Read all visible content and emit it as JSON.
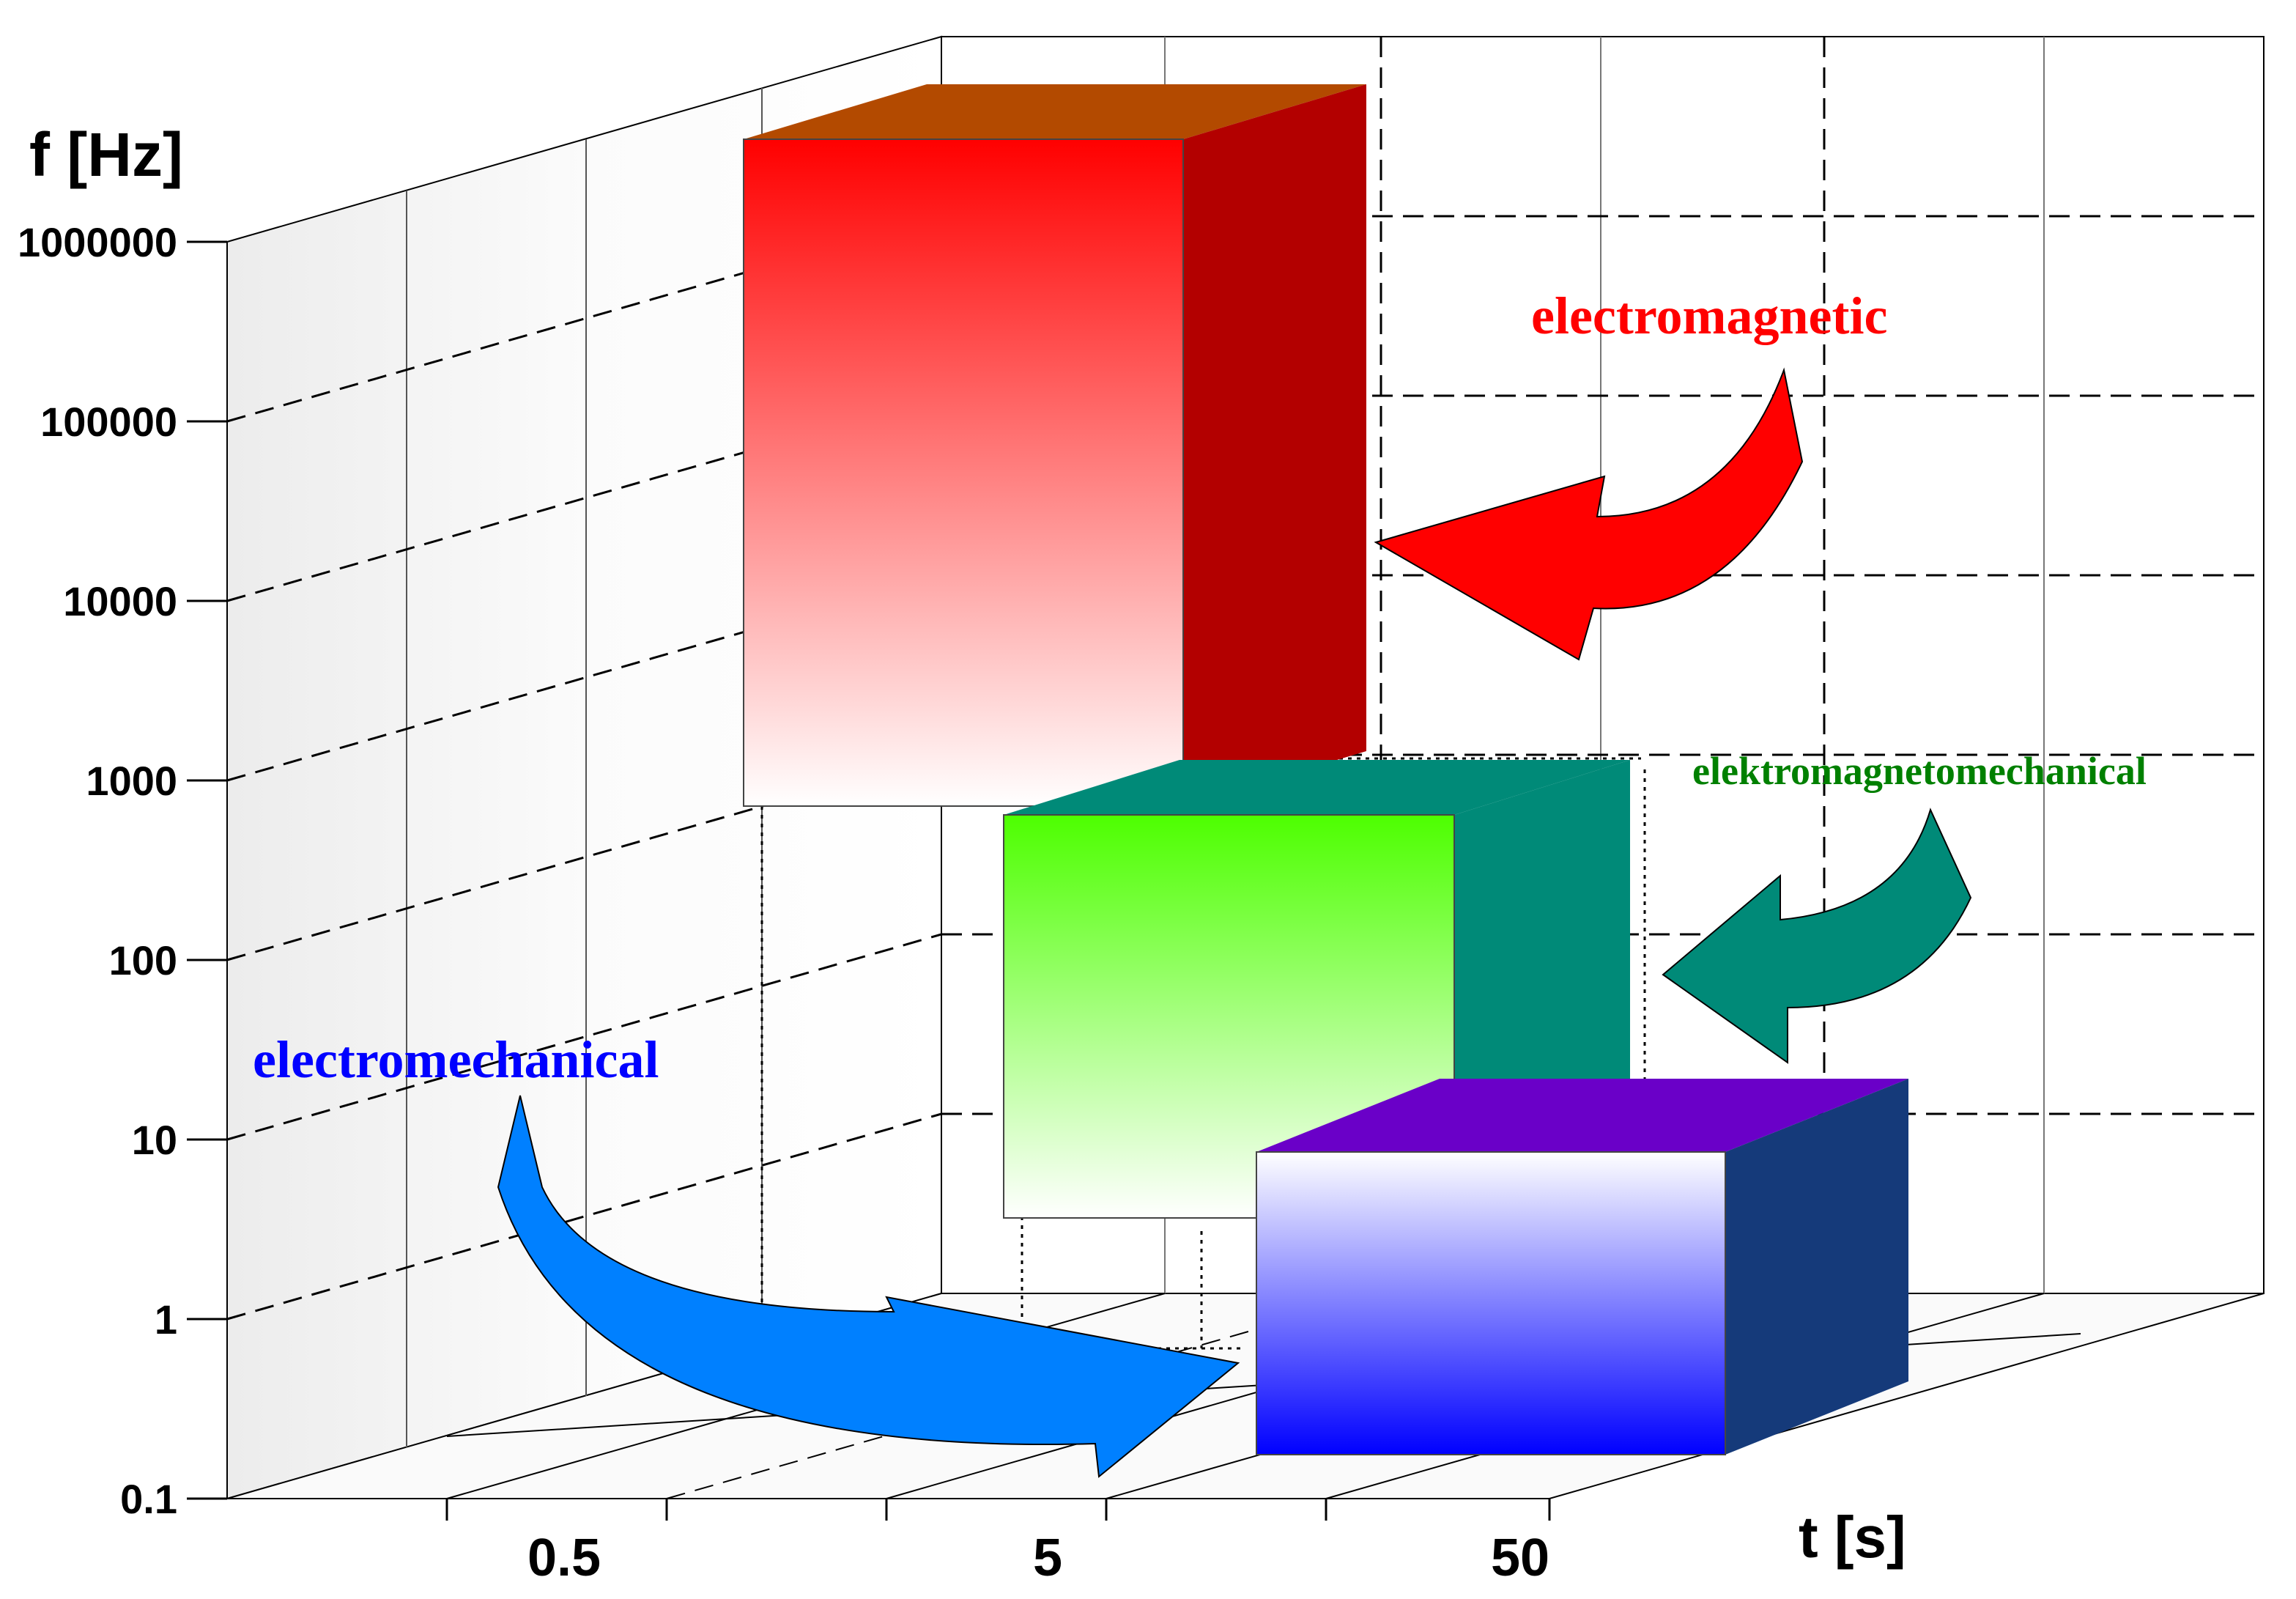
{
  "chart_data": {
    "type": "bar3d",
    "title": "",
    "ylabel": "f [Hz]",
    "xlabel": "t [s]",
    "y_scale": "log",
    "y_ticks": [
      "0.1",
      "1",
      "10",
      "100",
      "1000",
      "10000",
      "100000",
      "1000000"
    ],
    "x_ticks": [
      "0.5",
      "5",
      "50"
    ],
    "grid": true,
    "series": [
      {
        "name": "electromagnetic",
        "f_range": [
          1000,
          1000000
        ],
        "t_range": [
          2,
          10
        ],
        "front_top": "#ff0000",
        "front_bottom": "#ffffff",
        "side": "#b30000",
        "top": "#b34a00",
        "label_color": "#ff0000",
        "arrow_color": "#ff0000"
      },
      {
        "name": "elektromagnetomechanical",
        "f_range": [
          3,
          1000
        ],
        "t_range": [
          5,
          40
        ],
        "front_top": "#4dff00",
        "front_bottom": "#ffffff",
        "side": "#008a78",
        "top": "#008a78",
        "label_color": "#008000",
        "arrow_color": "#008a78"
      },
      {
        "name": "electromechanical",
        "f_range": [
          0.1,
          10
        ],
        "t_range": [
          10,
          100
        ],
        "front_top": "#ffffff",
        "front_bottom": "#0000ff",
        "side": "#153a7a",
        "top": "#6a00c8",
        "label_color": "#0000ff",
        "arrow_color": "#0080ff"
      }
    ]
  }
}
